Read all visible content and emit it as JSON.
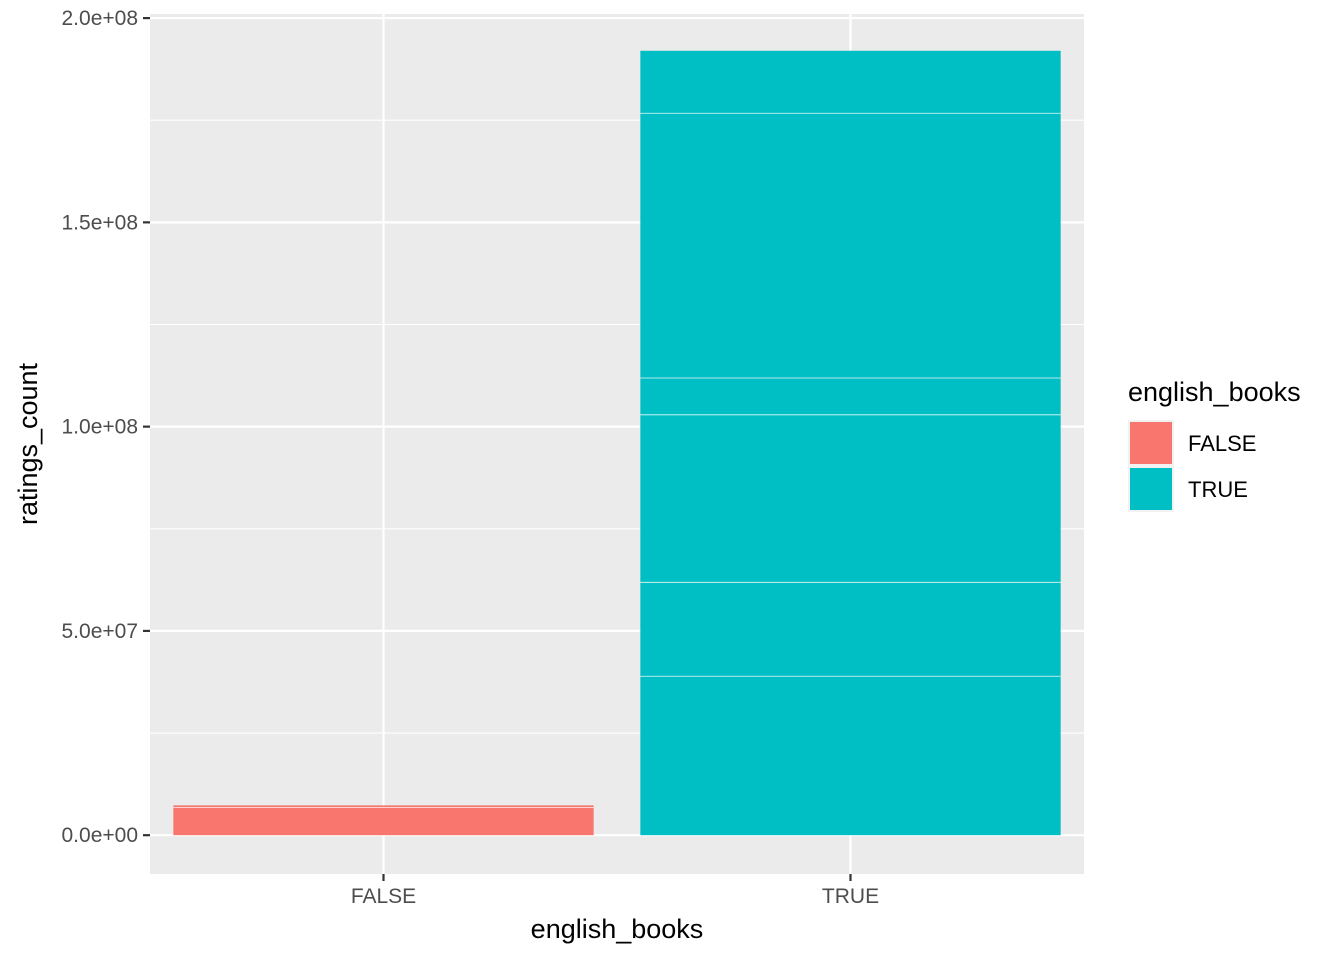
{
  "chart_data": {
    "type": "bar",
    "stacked": true,
    "xlabel": "english_books",
    "ylabel": "ratings_count",
    "categories": [
      "FALSE",
      "TRUE"
    ],
    "ylim": [
      -9500000,
      201000000
    ],
    "y_ticks": [
      {
        "value": 0,
        "label": "0.0e+00"
      },
      {
        "value": 50000000,
        "label": "5.0e+07"
      },
      {
        "value": 100000000,
        "label": "1.0e+08"
      },
      {
        "value": 150000000,
        "label": "1.5e+08"
      },
      {
        "value": 200000000,
        "label": "2.0e+08"
      }
    ],
    "y_minor_ticks": [
      25000000,
      75000000,
      125000000,
      175000000
    ],
    "stacks": [
      {
        "category": "FALSE",
        "fill": "FALSE",
        "segments": [
          6800000,
          500000
        ]
      },
      {
        "category": "TRUE",
        "fill": "TRUE",
        "segments": [
          38900000,
          23000000,
          41000000,
          9000000,
          64800000,
          15300000
        ]
      }
    ],
    "legend": {
      "title": "english_books",
      "position": "right",
      "items": [
        {
          "label": "FALSE",
          "color": "#F8766D"
        },
        {
          "label": "TRUE",
          "color": "#00BFC4"
        }
      ]
    },
    "grid": true,
    "colors": {
      "panel_background": "#EBEBEB",
      "grid": "#FFFFFF",
      "FALSE": "#F8766D",
      "TRUE": "#00BFC4"
    }
  }
}
